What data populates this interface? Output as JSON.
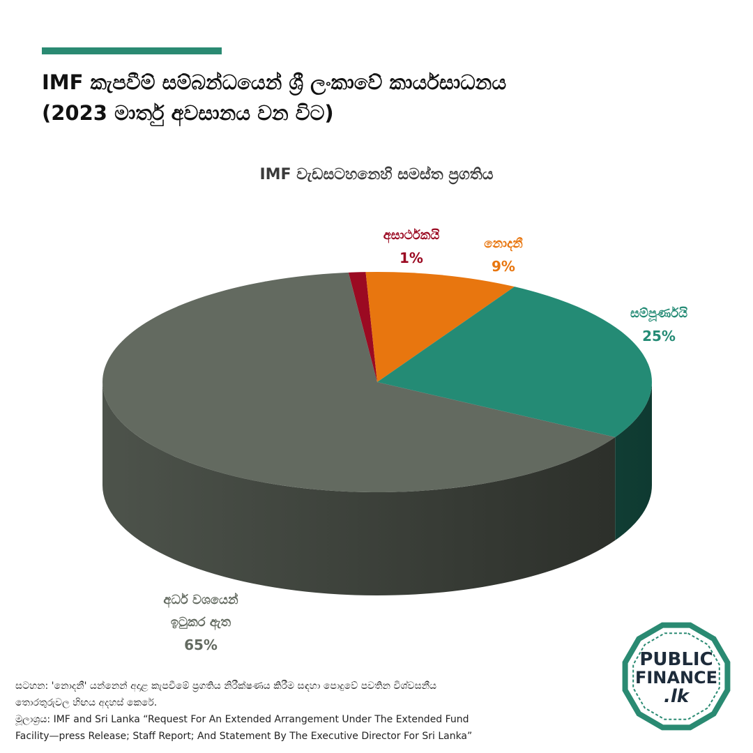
{
  "header": {
    "title_line1": "IMF කැපවීම් සම්බන්ධයෙන් ශ්‍රී ලංකාවේ කාර්යසාධනය",
    "title_line2": "(2023 මාර්තු අවසානය වන විට)",
    "accent_color": "#2a8a72"
  },
  "chart_data": {
    "type": "pie",
    "title": "IMF වැඩසටහනෙහි සමස්ත ප්‍රගතිය",
    "slices": [
      {
        "name": "අසාර්ථකයි",
        "value": 1,
        "label": "1%",
        "color": "#9b0a22"
      },
      {
        "name": "නොදනී",
        "value": 9,
        "label": "9%",
        "color": "#e8760f"
      },
      {
        "name": "සම්පූර්ණයි",
        "value": 25,
        "label": "25%",
        "color": "#248b75"
      },
      {
        "name_line1": "අර්ධ වශයෙන්",
        "name_line2": "ඉටුකර ඇත",
        "value": 65,
        "label": "65%",
        "color": "#636a60"
      }
    ]
  },
  "footer": {
    "note_line1": "සටහන: 'නොදනී' යන්නෙන් අදාළ කැපවීමේ ප්‍රගතිය නිරීක්ෂණය කිරීම සඳහා පොදුවේ පවතින විශ්වසනීය",
    "note_line2": "තොරතුරුවල හිඟය අදහස් කෙරේ.",
    "source_line1": "මූලාශ්‍රය: IMF and Sri Lanka “Request For An Extended Arrangement Under The Extended Fund",
    "source_line2": "Facility—press Release; Staff Report; And Statement By The Executive Director For Sri Lanka”"
  },
  "logo": {
    "line1": "PUBLIC",
    "line2": "FINANCE",
    "line3": ".lk",
    "ring_color": "#2a8a72"
  }
}
